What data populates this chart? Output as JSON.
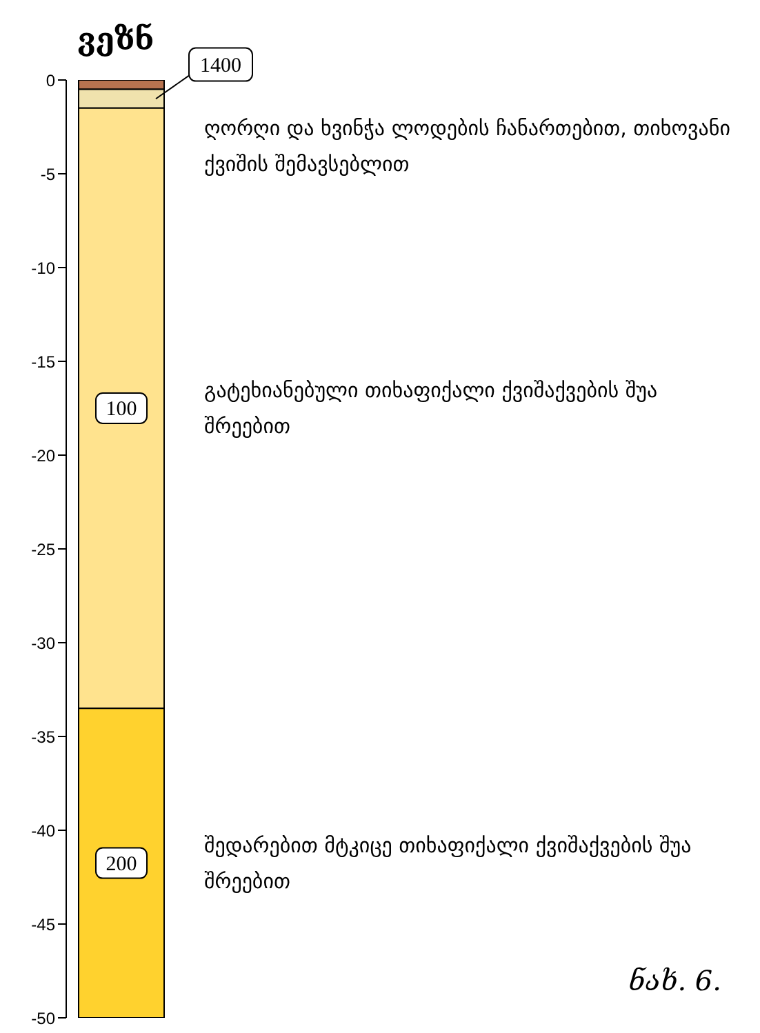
{
  "chart_data": {
    "type": "bar",
    "stacked": true,
    "title": "ვეზნ",
    "categories": [
      null
    ],
    "series": [
      {
        "color": "#b87350",
        "values": [
          -0.5
        ]
      },
      {
        "name": "1400",
        "color": "#f0e2ad",
        "values": [
          -1
        ]
      },
      {
        "name": "100",
        "color": "#ffe38e",
        "values": [
          -32
        ]
      },
      {
        "name": "200",
        "color": "#ffd22e",
        "values": [
          -16.5
        ]
      }
    ],
    "ylim": [
      -50,
      0
    ],
    "yticks": [
      0,
      -5,
      -10,
      -15,
      -20,
      -25,
      -30,
      -35,
      -40,
      -45,
      -50
    ],
    "grid": false,
    "legend": false,
    "annotations": [
      "ღორღი და ხვინჭა ლოდების ჩანართებით, თიხოვანი ქვიშის შემავსებლით",
      "გატეხიანებული თიხაფიქალი ქვიშაქვების შუა შრეებით",
      "შედარებით მტკიცე თიხაფიქალი ქვიშაქვების შუა შრეებით",
      "ნახ. 6."
    ]
  }
}
